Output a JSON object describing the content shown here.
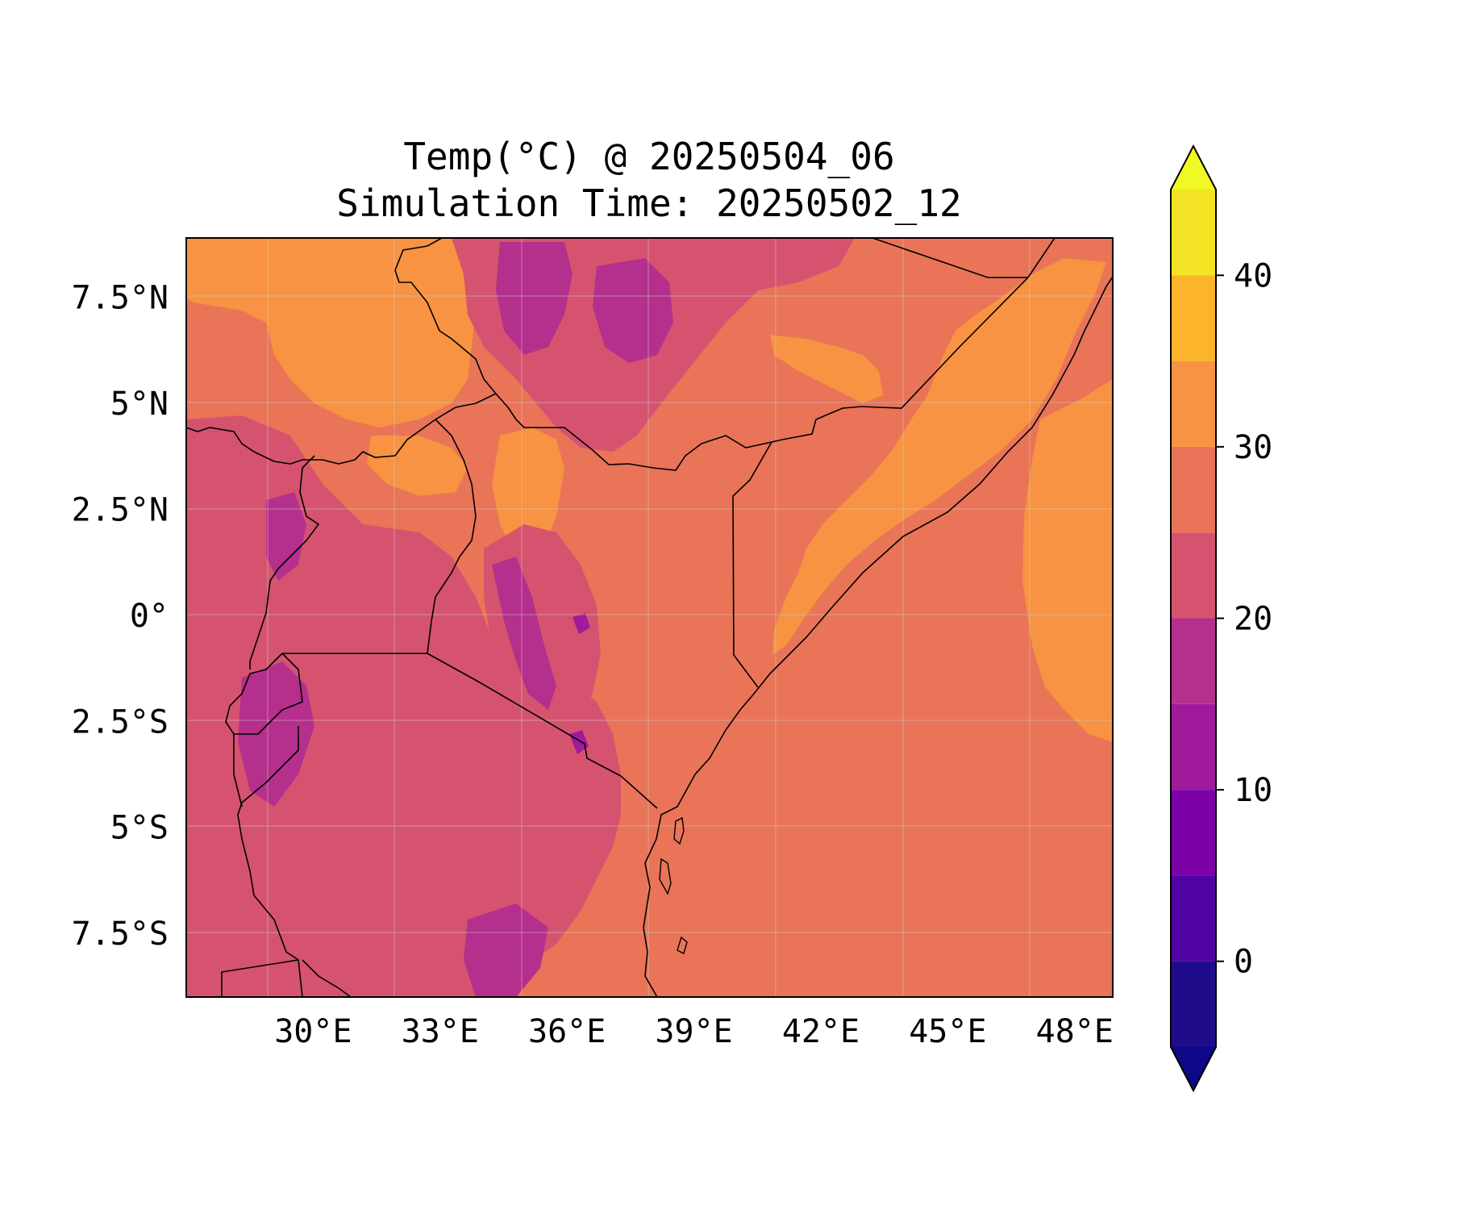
{
  "title": {
    "line1": "Temp(°C) @ 20250504_06",
    "line2": "Simulation Time: 20250502_12"
  },
  "map": {
    "projection": "PlateCarree",
    "lon_range": [
      27.0,
      48.9
    ],
    "lat_range": [
      -9.0,
      8.9
    ],
    "x_ticks": [
      {
        "lon": 30,
        "label": "30°E"
      },
      {
        "lon": 33,
        "label": "33°E"
      },
      {
        "lon": 36,
        "label": "36°E"
      },
      {
        "lon": 39,
        "label": "39°E"
      },
      {
        "lon": 42,
        "label": "42°E"
      },
      {
        "lon": 45,
        "label": "45°E"
      },
      {
        "lon": 48,
        "label": "48°E"
      }
    ],
    "y_ticks": [
      {
        "lat": 7.5,
        "label": "7.5°N"
      },
      {
        "lat": 5,
        "label": "5°N"
      },
      {
        "lat": 2.5,
        "label": "2.5°N"
      },
      {
        "lat": 0,
        "label": "0°"
      },
      {
        "lat": -2.5,
        "label": "2.5°S"
      },
      {
        "lat": -5,
        "label": "5°S"
      },
      {
        "lat": -7.5,
        "label": "7.5°S"
      }
    ],
    "gridlines": true,
    "field_colors": {
      "t15_20": "#b52f8c",
      "t20_25": "#d5536f",
      "t25_30": "#e97458",
      "t30_35": "#f79342"
    },
    "colors_note": "field dominated by 25-30 °C; cooler highlands 15-25 °C; warm 30-35 °C over Somalia coast, Sudan lowlands"
  },
  "colorbar": {
    "levels": [
      -5,
      0,
      5,
      10,
      15,
      20,
      25,
      30,
      35,
      40,
      45
    ],
    "colors": [
      "#220690",
      "#4c02a1",
      "#7e03a8",
      "#a82296",
      "#cb4679",
      "#e56b5d",
      "#e9745a",
      "#f89540",
      "#fdc328",
      "#f0f921"
    ],
    "band_colors": [
      "#1f0c8a",
      "#5002a2",
      "#7c02a8",
      "#a01a9c",
      "#b52f8c",
      "#d5536f",
      "#e97458",
      "#f79342",
      "#fbb42c",
      "#f2e424"
    ],
    "extend_low_color": "#0d0887",
    "extend_high_color": "#f0f921",
    "extend": "both",
    "tick_values": [
      0,
      10,
      20,
      30,
      40
    ],
    "tick_labels": [
      "0",
      "10",
      "20",
      "30",
      "40"
    ]
  }
}
